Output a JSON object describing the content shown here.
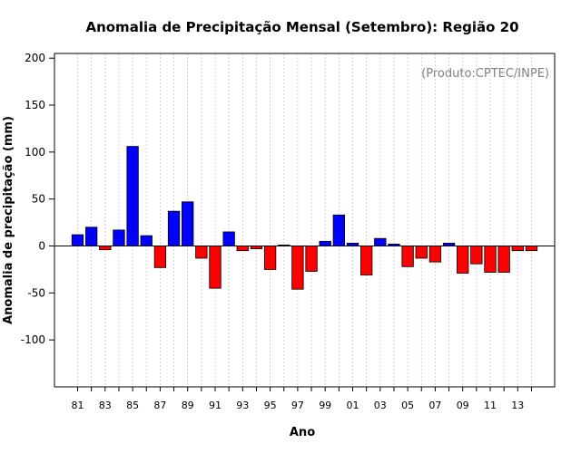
{
  "chart_data": {
    "type": "bar",
    "title": "Anomalia de Precipitação Mensal (Setembro): Região 20",
    "credit": "(Produto:CPTEC/INPE)",
    "xlabel": "Ano",
    "ylabel": "Anomalia de precipitação (mm)",
    "ylim": [
      -150,
      205
    ],
    "yticks": [
      -100,
      -50,
      0,
      50,
      100,
      150,
      200
    ],
    "grid": "vertical-dotted",
    "positive_color": "#0000ff",
    "negative_color": "#ff0000",
    "x_tick_labels": [
      "81",
      "83",
      "85",
      "87",
      "89",
      "91",
      "93",
      "95",
      "97",
      "99",
      "01",
      "03",
      "05",
      "07",
      "09",
      "11",
      "13"
    ],
    "categories": [
      "1981",
      "1982",
      "1983",
      "1984",
      "1985",
      "1986",
      "1987",
      "1988",
      "1989",
      "1990",
      "1991",
      "1992",
      "1993",
      "1994",
      "1995",
      "1996",
      "1997",
      "1998",
      "1999",
      "2000",
      "2001",
      "2002",
      "2003",
      "2004",
      "2005",
      "2006",
      "2007",
      "2008",
      "2009",
      "2010",
      "2011",
      "2012",
      "2013",
      "2014"
    ],
    "values": [
      12,
      20,
      -4,
      17,
      106,
      11,
      -23,
      37,
      47,
      -13,
      -45,
      15,
      -5,
      -3,
      -25,
      1,
      -46,
      -27,
      5,
      33,
      3,
      -31,
      8,
      2,
      -22,
      -13,
      -17,
      3,
      -29,
      -19,
      -28,
      -28,
      -5,
      -5
    ]
  }
}
